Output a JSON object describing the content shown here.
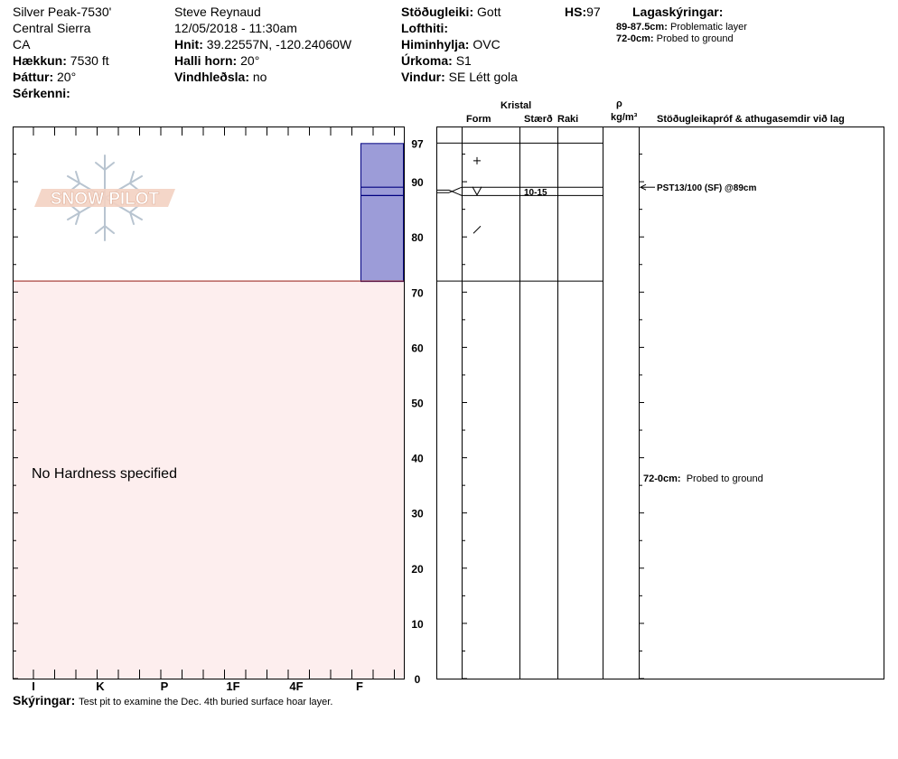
{
  "header": {
    "col1": {
      "location": "Silver Peak-7530'",
      "range": "Central Sierra",
      "state": "CA",
      "elevation_label": "Hækkun:",
      "elevation": "7530 ft",
      "aspect_label": "Þáttur:",
      "aspect": "20°",
      "features_label": "Sérkenni:",
      "features": ""
    },
    "col2": {
      "observer": "Steve Reynaud",
      "datetime": "12/05/2018 - 11:30am",
      "coords_label": "Hnit:",
      "coords": "39.22557N, -120.24060W",
      "slope_label": "Halli horn:",
      "slope": "20°",
      "wind_loading_label": "Vindhleðsla:",
      "wind_loading": "no"
    },
    "col3": {
      "stability_label": "Stöðugleiki:",
      "stability": "Gott",
      "air_temp_label": "Lofthiti:",
      "air_temp": "",
      "sky_label": "Himinhylja:",
      "sky": "OVC",
      "precip_label": "Úrkoma:",
      "precip": "S1",
      "wind_label": "Vindur:",
      "wind": "SE Létt gola"
    },
    "hs_label": "HS:",
    "hs": "97",
    "layer_notes_title": "Lagaskýringar:",
    "layer_notes": [
      {
        "range": "89-87.5cm:",
        "text": "Problematic layer"
      },
      {
        "range": "72-0cm:",
        "text": "Probed to ground"
      }
    ]
  },
  "columns": {
    "crystal": "Kristal",
    "form": "Form",
    "size": "Stærð",
    "moisture": "Raki",
    "rho": "ρ",
    "density_unit": "kg/m³",
    "tests": "Stöðugleikapróf & athugasemdir við lag"
  },
  "logo": "SNOW PILOT",
  "no_hardness": "No Hardness specified",
  "chart_data": {
    "type": "snow-profile",
    "y_unit": "cm",
    "ylim": [
      0,
      97
    ],
    "y_ticks": [
      0,
      10,
      20,
      30,
      40,
      50,
      60,
      70,
      80,
      90
    ],
    "hs_tick": 97,
    "hardness_scale": [
      "I",
      "K",
      "P",
      "1F",
      "4F",
      "F"
    ],
    "layers": [
      {
        "top": 97,
        "bottom": 89,
        "form": "+",
        "size": ""
      },
      {
        "top": 89,
        "bottom": 87.5,
        "form": "V",
        "size": "10-15"
      },
      {
        "top": 87.5,
        "bottom": 72,
        "form": "/",
        "size": ""
      }
    ],
    "problematic_layer": {
      "top": 89,
      "bottom": 87.5
    },
    "probed_to_ground": {
      "top": 72,
      "bottom": 0
    },
    "test_results": [
      {
        "depth": 89,
        "text": "PST13/100 (SF) @89cm"
      }
    ],
    "layer_comments": [
      {
        "depth": 36,
        "range": "72-0cm:",
        "text": "Probed to ground"
      }
    ]
  },
  "footer": {
    "comments_label": "Skýringar:",
    "comments": "Test pit to examine the Dec. 4th buried surface hoar layer."
  }
}
